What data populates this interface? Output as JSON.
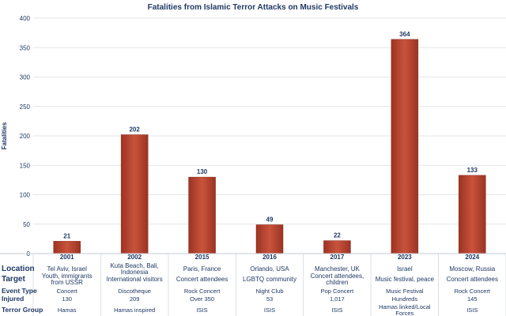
{
  "chart_data": {
    "type": "bar",
    "title": "Fatalities from Islamic Terror Attacks on Music Festivals",
    "ylabel": "Fatalities",
    "xlabel": "",
    "ylim": [
      0,
      400
    ],
    "yticks": [
      0,
      50,
      100,
      150,
      200,
      250,
      300,
      350,
      400
    ],
    "grid": true,
    "bar_color": "#b9432f",
    "categories": [
      "2001",
      "2002",
      "2015",
      "2016",
      "2017",
      "2023",
      "2024"
    ],
    "values": [
      21,
      202,
      130,
      49,
      22,
      364,
      133
    ],
    "table": {
      "rows": [
        {
          "label": "Location",
          "cells": [
            [
              "Tel Aviv, Israel"
            ],
            [
              "Kuta Beach, Bali,",
              "Indonesia"
            ],
            [
              "Paris, France"
            ],
            [
              "Orlando, USA"
            ],
            [
              "Manchester, UK"
            ],
            [
              "Israel"
            ],
            [
              "Moscow, Russia"
            ]
          ]
        },
        {
          "label": "Target",
          "cells": [
            [
              "Youth, immigrants",
              "from USSR"
            ],
            [
              "International visitors"
            ],
            [
              "Concert attendees"
            ],
            [
              "LGBTQ community"
            ],
            [
              "Concert attendees,",
              "children"
            ],
            [
              "Music festival, peace"
            ],
            [
              "Concert attendees"
            ]
          ]
        },
        {
          "label": "Event Type",
          "cells": [
            [
              "Concert"
            ],
            [
              "Discotheque"
            ],
            [
              "Rock Concert"
            ],
            [
              "Night Club"
            ],
            [
              "Pop Concert"
            ],
            [
              "Music Festival"
            ],
            [
              "Rock Concert"
            ]
          ]
        },
        {
          "label": "Injured",
          "cells": [
            [
              "130"
            ],
            [
              "209"
            ],
            [
              "Over 350"
            ],
            [
              "53"
            ],
            [
              "1,017"
            ],
            [
              "Hundreds"
            ],
            [
              "145"
            ]
          ]
        },
        {
          "label": "Terror Group",
          "cells": [
            [
              "Hamas"
            ],
            [
              "Hamas inspired"
            ],
            [
              "ISIS"
            ],
            [
              "ISIS"
            ],
            [
              "ISIS"
            ],
            [
              "Hamas linked/Local",
              "Forces"
            ],
            [
              "ISIS"
            ]
          ]
        }
      ]
    }
  }
}
